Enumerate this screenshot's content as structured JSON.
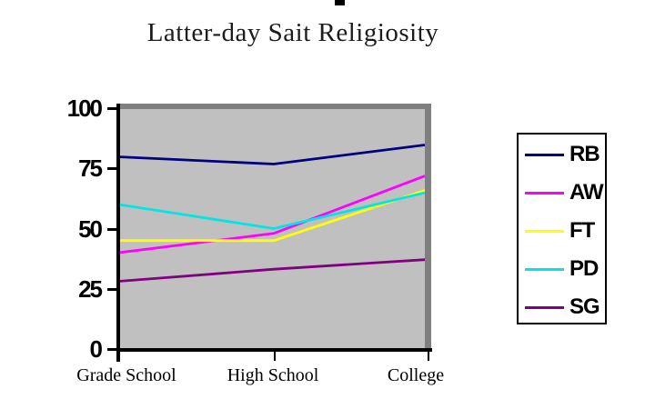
{
  "chart_data": {
    "type": "line",
    "title": "Latter-day Sait Religiosity",
    "categories": [
      "Grade School",
      "High School",
      "College"
    ],
    "series": [
      {
        "name": "RB",
        "color": "#000080",
        "values": [
          80,
          77,
          85
        ]
      },
      {
        "name": "AW",
        "color": "#FF00FF",
        "values": [
          40,
          48,
          72
        ]
      },
      {
        "name": "FT",
        "color": "#FFFF00",
        "values": [
          45,
          45,
          66
        ]
      },
      {
        "name": "PD",
        "color": "#00E5E5",
        "values": [
          60,
          50,
          65
        ]
      },
      {
        "name": "SG",
        "color": "#800080",
        "values": [
          28,
          33,
          37
        ]
      }
    ],
    "xlabel": "",
    "ylabel": "",
    "ylim": [
      0,
      100
    ],
    "yticks": [
      0,
      25,
      50,
      75,
      100
    ],
    "grid": false,
    "legend_position": "right",
    "plot_background": "#C0C0C0",
    "plot_border_color": "#7F7F7F",
    "axis_color": "#000000",
    "page_background": "#FFFFFF"
  }
}
